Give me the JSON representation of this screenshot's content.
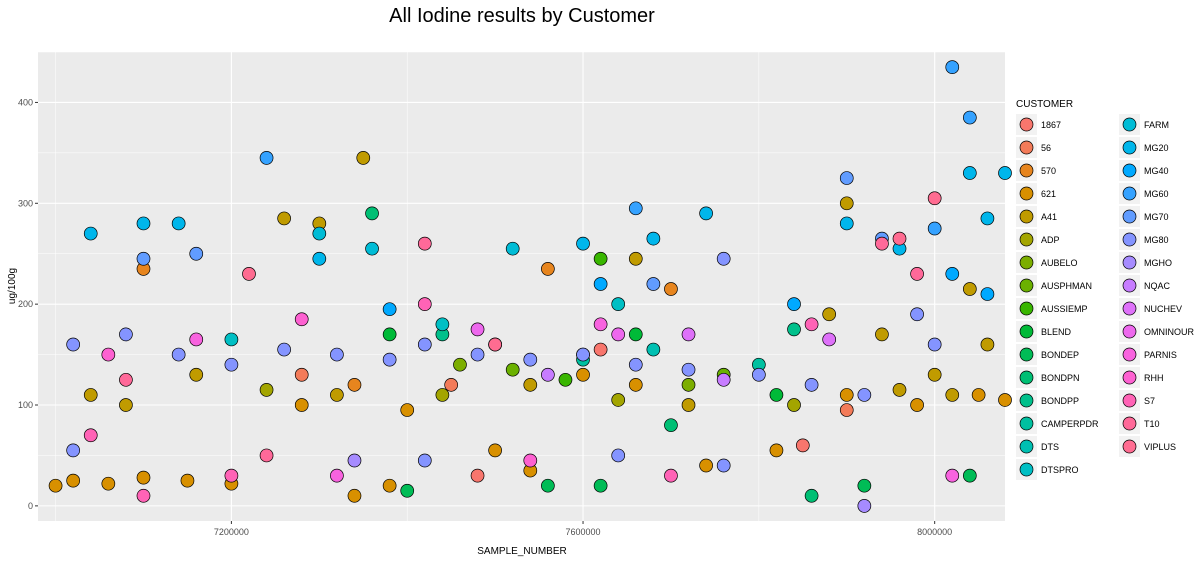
{
  "chart_data": {
    "type": "scatter",
    "title": "All Iodine results by Customer",
    "xlabel": "SAMPLE_NUMBER",
    "ylabel": "ug/100g",
    "xlim": [
      6980000,
      8080000
    ],
    "ylim": [
      -15,
      450
    ],
    "x_ticks": [
      7200000,
      7600000,
      8000000
    ],
    "x_tick_labels": [
      "7200000",
      "7600000",
      "8000000"
    ],
    "y_ticks": [
      0,
      100,
      200,
      300,
      400
    ],
    "y_tick_labels": [
      "0",
      "100",
      "200",
      "300",
      "400"
    ],
    "grid": true,
    "legend_title": "CUSTOMER",
    "legend_position": "right",
    "series": [
      {
        "name": "1867",
        "color": "#F8766D",
        "points": [
          [
            7620000,
            155
          ],
          [
            7850000,
            60
          ],
          [
            7480000,
            30
          ]
        ]
      },
      {
        "name": "56",
        "color": "#F37B59",
        "points": [
          [
            7280000,
            130
          ],
          [
            7450000,
            120
          ],
          [
            7900000,
            95
          ]
        ]
      },
      {
        "name": "570",
        "color": "#E7851E",
        "points": [
          [
            7100000,
            235
          ],
          [
            7340000,
            120
          ],
          [
            7560000,
            235
          ],
          [
            7700000,
            215
          ]
        ]
      },
      {
        "name": "621",
        "color": "#D89000",
        "points": [
          [
            7000000,
            20
          ],
          [
            7020000,
            25
          ],
          [
            7060000,
            22
          ],
          [
            7100000,
            28
          ],
          [
            7150000,
            25
          ],
          [
            7200000,
            22
          ],
          [
            7340000,
            10
          ],
          [
            7380000,
            20
          ],
          [
            7500000,
            55
          ],
          [
            7540000,
            35
          ],
          [
            7740000,
            40
          ],
          [
            7820000,
            55
          ],
          [
            7660000,
            120
          ],
          [
            7900000,
            110
          ],
          [
            7980000,
            100
          ],
          [
            8050000,
            110
          ],
          [
            8080000,
            105
          ],
          [
            7280000,
            100
          ],
          [
            7400000,
            95
          ],
          [
            7600000,
            130
          ]
        ]
      },
      {
        "name": "A41",
        "color": "#C09B00",
        "points": [
          [
            7260000,
            285
          ],
          [
            7300000,
            280
          ],
          [
            7350000,
            345
          ],
          [
            7320000,
            110
          ],
          [
            7540000,
            120
          ],
          [
            7660000,
            245
          ],
          [
            7900000,
            300
          ],
          [
            7880000,
            190
          ],
          [
            7940000,
            170
          ],
          [
            7960000,
            115
          ],
          [
            8000000,
            130
          ],
          [
            8040000,
            215
          ],
          [
            8060000,
            160
          ],
          [
            8020000,
            110
          ],
          [
            7720000,
            100
          ],
          [
            7160000,
            130
          ],
          [
            7080000,
            100
          ],
          [
            7040000,
            110
          ]
        ]
      },
      {
        "name": "ADP",
        "color": "#A3A500",
        "points": [
          [
            7240000,
            115
          ],
          [
            7440000,
            110
          ],
          [
            7640000,
            105
          ],
          [
            7840000,
            100
          ]
        ]
      },
      {
        "name": "AUBELO",
        "color": "#7CAE00",
        "points": [
          [
            7460000,
            140
          ],
          [
            7600000,
            150
          ],
          [
            7720000,
            120
          ]
        ]
      },
      {
        "name": "AUSPHMAN",
        "color": "#6BB100",
        "points": [
          [
            7520000,
            135
          ],
          [
            7760000,
            130
          ]
        ]
      },
      {
        "name": "AUSSIEMP",
        "color": "#39B600",
        "points": [
          [
            7620000,
            245
          ],
          [
            7580000,
            125
          ]
        ]
      },
      {
        "name": "BLEND",
        "color": "#00BA38",
        "points": [
          [
            7380000,
            170
          ],
          [
            7660000,
            170
          ],
          [
            7820000,
            110
          ]
        ]
      },
      {
        "name": "BONDEP",
        "color": "#00BC56",
        "points": [
          [
            7400000,
            15
          ],
          [
            7560000,
            20
          ],
          [
            7620000,
            20
          ],
          [
            7920000,
            20
          ],
          [
            8040000,
            30
          ]
        ]
      },
      {
        "name": "BONDPN",
        "color": "#00BF74",
        "points": [
          [
            7360000,
            290
          ],
          [
            7700000,
            80
          ],
          [
            7860000,
            10
          ]
        ]
      },
      {
        "name": "BONDPP",
        "color": "#00C08B",
        "points": [
          [
            7440000,
            170
          ],
          [
            7840000,
            175
          ]
        ]
      },
      {
        "name": "CAMPERPDR",
        "color": "#00C0A0",
        "points": [
          [
            7600000,
            145
          ],
          [
            7800000,
            140
          ]
        ]
      },
      {
        "name": "DTS",
        "color": "#00C0B2",
        "points": [
          [
            7500000,
            160
          ],
          [
            7680000,
            155
          ]
        ]
      },
      {
        "name": "DTSPRO",
        "color": "#00BFC4",
        "points": [
          [
            7200000,
            165
          ],
          [
            7440000,
            180
          ],
          [
            7640000,
            200
          ]
        ]
      },
      {
        "name": "FARM",
        "color": "#00BCD6",
        "points": [
          [
            7300000,
            270
          ],
          [
            7360000,
            255
          ],
          [
            7520000,
            255
          ]
        ]
      },
      {
        "name": "MG20",
        "color": "#00B6EB",
        "points": [
          [
            7040000,
            270
          ],
          [
            7100000,
            280
          ],
          [
            7140000,
            280
          ],
          [
            7300000,
            245
          ],
          [
            7600000,
            260
          ],
          [
            7680000,
            265
          ],
          [
            7740000,
            290
          ],
          [
            7900000,
            280
          ],
          [
            7960000,
            255
          ],
          [
            8040000,
            330
          ],
          [
            8060000,
            285
          ],
          [
            8080000,
            330
          ]
        ]
      },
      {
        "name": "MG40",
        "color": "#00A9FF",
        "points": [
          [
            7380000,
            195
          ],
          [
            7620000,
            220
          ],
          [
            7840000,
            200
          ],
          [
            8020000,
            230
          ],
          [
            8060000,
            210
          ]
        ]
      },
      {
        "name": "MG60",
        "color": "#35A2FF",
        "points": [
          [
            7240000,
            345
          ],
          [
            7660000,
            295
          ],
          [
            8020000,
            435
          ],
          [
            8040000,
            385
          ],
          [
            8000000,
            275
          ]
        ]
      },
      {
        "name": "MG70",
        "color": "#619CFF",
        "points": [
          [
            7100000,
            245
          ],
          [
            7160000,
            250
          ],
          [
            7680000,
            220
          ],
          [
            7900000,
            325
          ],
          [
            7940000,
            265
          ]
        ]
      },
      {
        "name": "MG80",
        "color": "#8494FF",
        "points": [
          [
            7020000,
            160
          ],
          [
            7080000,
            170
          ],
          [
            7140000,
            150
          ],
          [
            7200000,
            140
          ],
          [
            7260000,
            155
          ],
          [
            7320000,
            150
          ],
          [
            7380000,
            145
          ],
          [
            7420000,
            160
          ],
          [
            7480000,
            150
          ],
          [
            7540000,
            145
          ],
          [
            7600000,
            150
          ],
          [
            7660000,
            140
          ],
          [
            7720000,
            135
          ],
          [
            7760000,
            245
          ],
          [
            7800000,
            130
          ],
          [
            7860000,
            120
          ],
          [
            7920000,
            110
          ],
          [
            7980000,
            190
          ],
          [
            8000000,
            160
          ],
          [
            7020000,
            55
          ],
          [
            7420000,
            45
          ],
          [
            7760000,
            40
          ],
          [
            7640000,
            50
          ]
        ]
      },
      {
        "name": "MGHO",
        "color": "#A68BFF",
        "points": [
          [
            7920000,
            0
          ],
          [
            7340000,
            45
          ]
        ]
      },
      {
        "name": "NQAC",
        "color": "#C77CFF",
        "points": [
          [
            7560000,
            130
          ],
          [
            7760000,
            125
          ]
        ]
      },
      {
        "name": "NUCHEV",
        "color": "#DE71F9",
        "points": [
          [
            7720000,
            170
          ],
          [
            7880000,
            165
          ]
        ]
      },
      {
        "name": "OMNINOUR",
        "color": "#ED68ED",
        "points": [
          [
            7480000,
            175
          ],
          [
            7640000,
            170
          ]
        ]
      },
      {
        "name": "PARNIS",
        "color": "#F863DF",
        "points": [
          [
            7160000,
            165
          ],
          [
            7320000,
            30
          ],
          [
            8020000,
            30
          ],
          [
            7620000,
            180
          ]
        ]
      },
      {
        "name": "RHH",
        "color": "#FD61D1",
        "points": [
          [
            7060000,
            150
          ],
          [
            7280000,
            185
          ],
          [
            7540000,
            45
          ]
        ]
      },
      {
        "name": "S7",
        "color": "#FF63B6",
        "points": [
          [
            7040000,
            70
          ],
          [
            7100000,
            10
          ],
          [
            7200000,
            30
          ],
          [
            7420000,
            200
          ],
          [
            7700000,
            30
          ],
          [
            7860000,
            180
          ]
        ]
      },
      {
        "name": "T10",
        "color": "#FF6999",
        "points": [
          [
            7080000,
            125
          ],
          [
            7240000,
            50
          ],
          [
            7420000,
            260
          ],
          [
            7940000,
            260
          ],
          [
            7980000,
            230
          ]
        ]
      },
      {
        "name": "VIPLUS",
        "color": "#FF6C91",
        "points": [
          [
            7220000,
            230
          ],
          [
            7500000,
            160
          ],
          [
            8000000,
            305
          ],
          [
            7960000,
            265
          ]
        ]
      }
    ]
  }
}
